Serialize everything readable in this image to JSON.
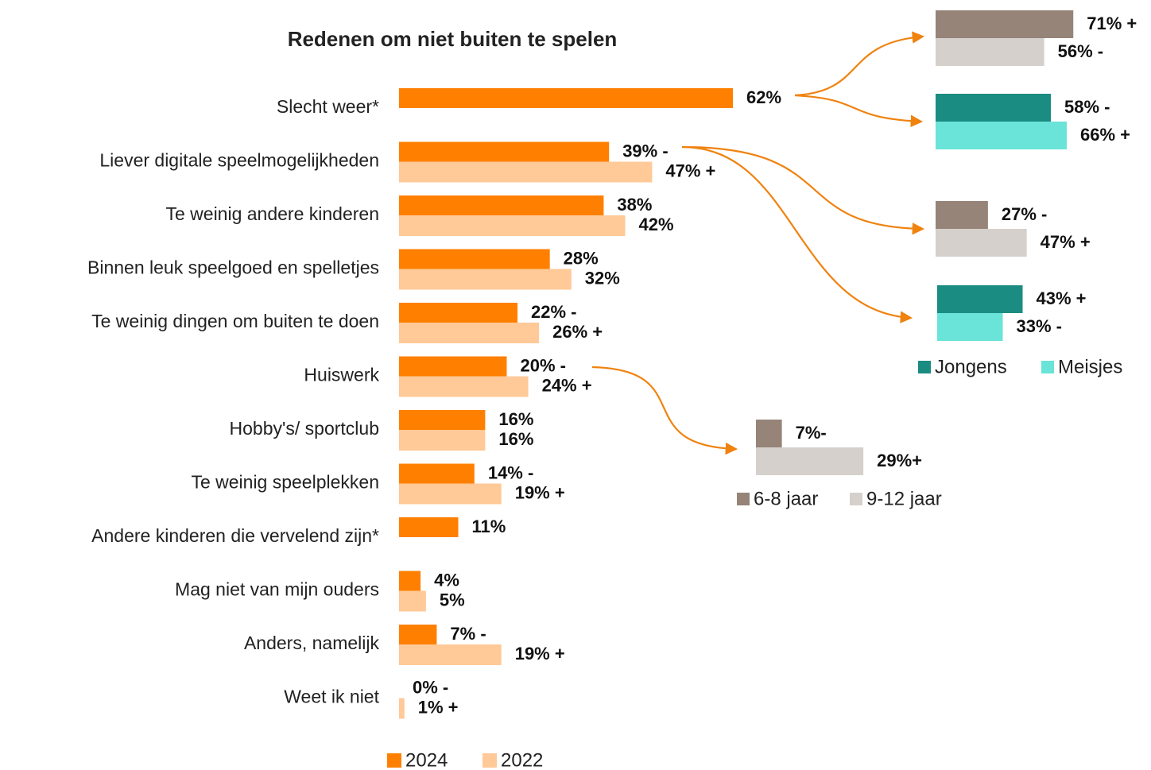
{
  "chart_data": [
    {
      "type": "bar",
      "title": "Redenen om niet buiten te spelen",
      "categories": [
        "Slecht weer*",
        "Liever digitale speelmogelijkheden",
        "Te weinig andere kinderen",
        "Binnen leuk speelgoed en spelletjes",
        "Te weinig dingen om buiten te doen",
        "Huiswerk",
        "Hobby's/ sportclub",
        "Te weinig speelplekken",
        "Andere kinderen die vervelend zijn*",
        "Mag niet van mijn ouders",
        "Anders, namelijk",
        "Weet ik niet"
      ],
      "series": [
        {
          "name": "2024",
          "color": "#ff8000",
          "values": [
            62,
            39,
            38,
            28,
            22,
            20,
            16,
            14,
            11,
            4,
            7,
            0
          ],
          "value_labels": [
            "62%",
            "39% -",
            "38%",
            "28%",
            "22% -",
            "20% -",
            "16%",
            "14% -",
            "11%",
            "4%",
            "7% -",
            "0% -"
          ]
        },
        {
          "name": "2022",
          "color": "#ffc998",
          "values": [
            null,
            47,
            42,
            32,
            26,
            24,
            16,
            19,
            null,
            5,
            19,
            1
          ],
          "value_labels": [
            null,
            "47% +",
            "42%",
            "32%",
            "26% +",
            "24% +",
            "16%",
            "19% +",
            null,
            "5%",
            "19% +",
            "1% +"
          ]
        }
      ]
    },
    {
      "type": "bar",
      "series": [
        {
          "name": "6-8 jaar",
          "color": "#968479",
          "values": [
            71,
            27,
            7
          ],
          "value_labels": [
            "71% +",
            "27% -",
            "7%-"
          ]
        },
        {
          "name": "9-12 jaar",
          "color": "#d6d0cc",
          "values": [
            56,
            47,
            29
          ],
          "value_labels": [
            "56% -",
            "47% +",
            "29%+"
          ]
        }
      ]
    },
    {
      "type": "bar",
      "series": [
        {
          "name": "Jongens",
          "color": "#1a8c82",
          "values": [
            58,
            43
          ],
          "value_labels": [
            "58% -",
            "43% +"
          ]
        },
        {
          "name": "Meisjes",
          "color": "#6ae3d8",
          "values": [
            66,
            33
          ],
          "value_labels": [
            "66% +",
            "33% -"
          ]
        }
      ]
    }
  ]
}
